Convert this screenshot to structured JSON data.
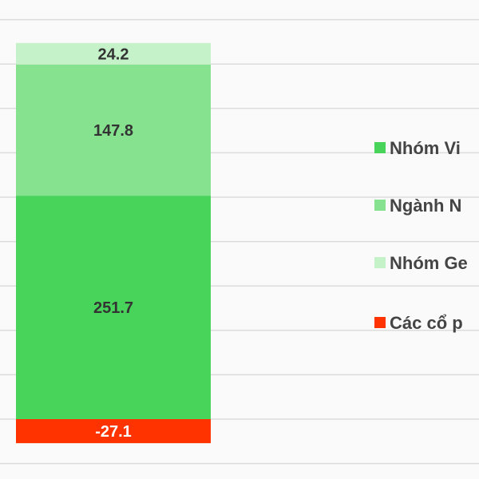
{
  "chart_data": {
    "type": "bar",
    "stacked": true,
    "categories": [
      ""
    ],
    "series": [
      {
        "name": "Nhóm Vi",
        "values": [
          251.7
        ],
        "color": "#48d35a",
        "label_color": "#333333"
      },
      {
        "name": "Ngành N",
        "values": [
          147.8
        ],
        "color": "#86e28f",
        "label_color": "#333333"
      },
      {
        "name": "Nhóm Ge",
        "values": [
          24.2
        ],
        "color": "#c5f2c8",
        "label_color": "#333333"
      },
      {
        "name": "Các cổ p",
        "values": [
          -27.1
        ],
        "color": "#ff3300",
        "label_color": "#ffffff"
      }
    ],
    "data_labels": [
      "251.7",
      "147.8",
      "24.2",
      "-27.1"
    ],
    "ylim": [
      -50,
      450
    ],
    "grid": true,
    "grid_step": 50,
    "legend_placement": "right",
    "title": "",
    "xlabel": "",
    "ylabel": ""
  }
}
